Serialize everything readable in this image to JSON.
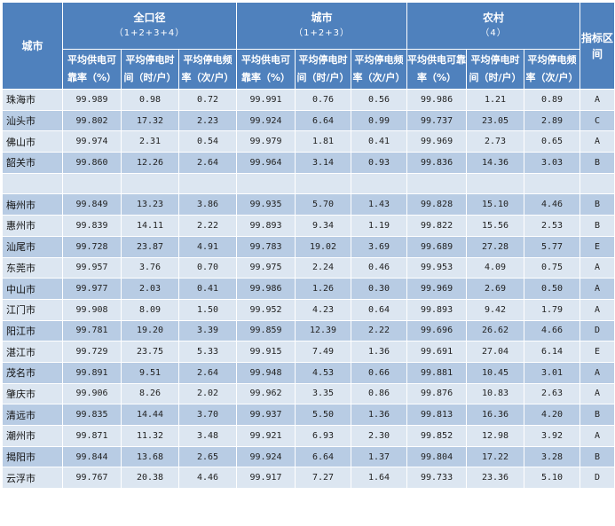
{
  "header": {
    "city": "城市",
    "group_all": "全口径",
    "group_all_sub": "（1+2+3+4）",
    "group_urban": "城市",
    "group_urban_sub": "（1+2+3）",
    "group_rural": "农村",
    "group_rural_sub": "（4）",
    "index_zone": "指标区间",
    "col_rate": "平均供电可靠率（%）",
    "col_time": "平均停电时间（时/户）",
    "col_freq": "平均停电频率（次/户）"
  },
  "rows": [
    {
      "city": "珠海市",
      "all": [
        "99.989",
        "0.98",
        "0.72"
      ],
      "urban": [
        "99.991",
        "0.76",
        "0.56"
      ],
      "rural": [
        "99.986",
        "1.21",
        "0.89"
      ],
      "zone": "A"
    },
    {
      "city": "汕头市",
      "all": [
        "99.802",
        "17.32",
        "2.23"
      ],
      "urban": [
        "99.924",
        "6.64",
        "0.99"
      ],
      "rural": [
        "99.737",
        "23.05",
        "2.89"
      ],
      "zone": "C"
    },
    {
      "city": "佛山市",
      "all": [
        "99.974",
        "2.31",
        "0.54"
      ],
      "urban": [
        "99.979",
        "1.81",
        "0.41"
      ],
      "rural": [
        "99.969",
        "2.73",
        "0.65"
      ],
      "zone": "A"
    },
    {
      "city": "韶关市",
      "all": [
        "99.860",
        "12.26",
        "2.64"
      ],
      "urban": [
        "99.964",
        "3.14",
        "0.93"
      ],
      "rural": [
        "99.836",
        "14.36",
        "3.03"
      ],
      "zone": "B"
    },
    {
      "blank": true
    },
    {
      "city": "梅州市",
      "all": [
        "99.849",
        "13.23",
        "3.86"
      ],
      "urban": [
        "99.935",
        "5.70",
        "1.43"
      ],
      "rural": [
        "99.828",
        "15.10",
        "4.46"
      ],
      "zone": "B"
    },
    {
      "city": "惠州市",
      "all": [
        "99.839",
        "14.11",
        "2.22"
      ],
      "urban": [
        "99.893",
        "9.34",
        "1.19"
      ],
      "rural": [
        "99.822",
        "15.56",
        "2.53"
      ],
      "zone": "B"
    },
    {
      "city": "汕尾市",
      "all": [
        "99.728",
        "23.87",
        "4.91"
      ],
      "urban": [
        "99.783",
        "19.02",
        "3.69"
      ],
      "rural": [
        "99.689",
        "27.28",
        "5.77"
      ],
      "zone": "E"
    },
    {
      "city": "东莞市",
      "all": [
        "99.957",
        "3.76",
        "0.70"
      ],
      "urban": [
        "99.975",
        "2.24",
        "0.46"
      ],
      "rural": [
        "99.953",
        "4.09",
        "0.75"
      ],
      "zone": "A"
    },
    {
      "city": "中山市",
      "all": [
        "99.977",
        "2.03",
        "0.41"
      ],
      "urban": [
        "99.986",
        "1.26",
        "0.30"
      ],
      "rural": [
        "99.969",
        "2.69",
        "0.50"
      ],
      "zone": "A"
    },
    {
      "city": "江门市",
      "all": [
        "99.908",
        "8.09",
        "1.50"
      ],
      "urban": [
        "99.952",
        "4.23",
        "0.64"
      ],
      "rural": [
        "99.893",
        "9.42",
        "1.79"
      ],
      "zone": "A"
    },
    {
      "city": "阳江市",
      "all": [
        "99.781",
        "19.20",
        "3.39"
      ],
      "urban": [
        "99.859",
        "12.39",
        "2.22"
      ],
      "rural": [
        "99.696",
        "26.62",
        "4.66"
      ],
      "zone": "D"
    },
    {
      "city": "湛江市",
      "all": [
        "99.729",
        "23.75",
        "5.33"
      ],
      "urban": [
        "99.915",
        "7.49",
        "1.36"
      ],
      "rural": [
        "99.691",
        "27.04",
        "6.14"
      ],
      "zone": "E"
    },
    {
      "city": "茂名市",
      "all": [
        "99.891",
        "9.51",
        "2.64"
      ],
      "urban": [
        "99.948",
        "4.53",
        "0.66"
      ],
      "rural": [
        "99.881",
        "10.45",
        "3.01"
      ],
      "zone": "A"
    },
    {
      "city": "肇庆市",
      "all": [
        "99.906",
        "8.26",
        "2.02"
      ],
      "urban": [
        "99.962",
        "3.35",
        "0.86"
      ],
      "rural": [
        "99.876",
        "10.83",
        "2.63"
      ],
      "zone": "A"
    },
    {
      "city": "清远市",
      "all": [
        "99.835",
        "14.44",
        "3.70"
      ],
      "urban": [
        "99.937",
        "5.50",
        "1.36"
      ],
      "rural": [
        "99.813",
        "16.36",
        "4.20"
      ],
      "zone": "B"
    },
    {
      "city": "潮州市",
      "all": [
        "99.871",
        "11.32",
        "3.48"
      ],
      "urban": [
        "99.921",
        "6.93",
        "2.30"
      ],
      "rural": [
        "99.852",
        "12.98",
        "3.92"
      ],
      "zone": "A"
    },
    {
      "city": "揭阳市",
      "all": [
        "99.844",
        "13.68",
        "2.65"
      ],
      "urban": [
        "99.924",
        "6.64",
        "1.37"
      ],
      "rural": [
        "99.804",
        "17.22",
        "3.28"
      ],
      "zone": "B"
    },
    {
      "city": "云浮市",
      "all": [
        "99.767",
        "20.38",
        "4.46"
      ],
      "urban": [
        "99.917",
        "7.27",
        "1.64"
      ],
      "rural": [
        "99.733",
        "23.36",
        "5.10"
      ],
      "zone": "D"
    }
  ]
}
